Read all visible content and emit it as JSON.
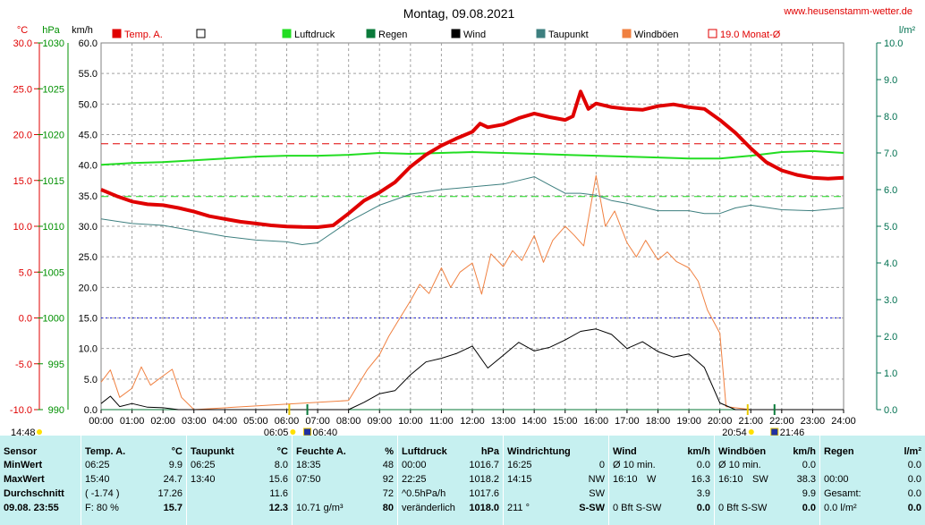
{
  "chart_data": {
    "type": "line",
    "title": "Montag, 09.08.2021",
    "watermark": "www.heusenstamm-wetter.de",
    "axes": {
      "temperature": {
        "unit": "°C",
        "range": [
          -10,
          30
        ],
        "ticks": [
          "30.0",
          "25.0",
          "20.0",
          "15.0",
          "10.0",
          "5.0",
          "0.0",
          "-5.0",
          "-10.0"
        ],
        "color": "#e00000"
      },
      "pressure": {
        "unit": "hPa",
        "range": [
          990,
          1030
        ],
        "ticks": [
          "1030",
          "1025",
          "1020",
          "1015",
          "1010",
          "1005",
          "1000",
          "995",
          "990"
        ],
        "color": "#009000"
      },
      "wind": {
        "unit": "km/h",
        "range": [
          0,
          60
        ],
        "ticks": [
          "60.0",
          "55.0",
          "50.0",
          "45.0",
          "40.0",
          "35.0",
          "30.0",
          "25.0",
          "20.0",
          "15.0",
          "10.0",
          "5.0",
          "0.0"
        ],
        "color": "#000000"
      },
      "rain": {
        "unit": "l/m²",
        "range": [
          0,
          10
        ],
        "ticks": [
          "10.0",
          "9.0",
          "8.0",
          "7.0",
          "6.0",
          "5.0",
          "4.0",
          "3.0",
          "2.0",
          "1.0",
          "0.0"
        ],
        "color": "#007050"
      }
    },
    "x_ticks": [
      "00:00",
      "01:00",
      "02:00",
      "03:00",
      "04:00",
      "05:00",
      "06:00",
      "07:00",
      "08:00",
      "09:00",
      "10:00",
      "11:00",
      "12:00",
      "13:00",
      "14:00",
      "15:00",
      "16:00",
      "17:00",
      "18:00",
      "19:00",
      "20:00",
      "21:00",
      "22:00",
      "23:00",
      "24:00"
    ],
    "x_range_hours": [
      0,
      24
    ],
    "grid": true,
    "legend_position": "top",
    "legend": [
      {
        "label": "Temp. A.",
        "color": "#e00000",
        "style": "filled"
      },
      {
        "label": "",
        "color": "#ffffff",
        "style": "hollow"
      },
      {
        "label": "Luftdruck",
        "color": "#22dd22",
        "style": "filled"
      },
      {
        "label": "Regen",
        "color": "#0a7a3a",
        "style": "filled"
      },
      {
        "label": "Wind",
        "color": "#000000",
        "style": "filled"
      },
      {
        "label": "Taupunkt",
        "color": "#3d7f7f",
        "style": "filled"
      },
      {
        "label": "Windböen",
        "color": "#f08040",
        "style": "filled"
      },
      {
        "label": "19.0 Monat-Ø",
        "color": "#e00000",
        "style": "hollow"
      }
    ],
    "reference_lines": [
      {
        "axis": "temperature",
        "value": 19.0,
        "color": "#e00000",
        "style": "dashed"
      },
      {
        "axis": "pressure",
        "value": 1013.25,
        "color": "#22dd22",
        "style": "dashed"
      },
      {
        "axis": "temperature",
        "value": 0,
        "color": "#2020d0",
        "style": "dotted"
      }
    ],
    "markers": {
      "sunrise": "06:05",
      "sunset": "20:54",
      "moonrise": "06:40",
      "moonset": "21:46",
      "daylength": "14:48"
    },
    "series": [
      {
        "name": "Temp. A.",
        "axis": "temperature",
        "color": "#e00000",
        "x": [
          0,
          0.5,
          1,
          1.5,
          2,
          2.5,
          3,
          3.5,
          4,
          4.5,
          5,
          5.5,
          6,
          6.5,
          7,
          7.5,
          8,
          8.5,
          9,
          9.5,
          10,
          10.5,
          11,
          11.5,
          12,
          12.25,
          12.5,
          13,
          13.5,
          14,
          14.5,
          15,
          15.25,
          15.5,
          15.75,
          16,
          16.5,
          17,
          17.5,
          18,
          18.5,
          19,
          19.5,
          20,
          20.5,
          21,
          21.5,
          22,
          22.5,
          23,
          23.5,
          24
        ],
        "y": [
          14.0,
          13.3,
          12.7,
          12.4,
          12.3,
          12.0,
          11.6,
          11.1,
          10.8,
          10.5,
          10.3,
          10.1,
          9.98,
          9.92,
          9.9,
          10.1,
          11.4,
          12.8,
          13.7,
          14.8,
          16.5,
          17.8,
          18.8,
          19.6,
          20.3,
          21.2,
          20.8,
          21.1,
          21.8,
          22.3,
          21.9,
          21.6,
          22.0,
          24.7,
          22.8,
          23.4,
          23.0,
          22.8,
          22.7,
          23.1,
          23.3,
          23.0,
          22.8,
          21.6,
          20.2,
          18.5,
          17.0,
          16.1,
          15.6,
          15.3,
          15.2,
          15.3
        ]
      },
      {
        "name": "Luftdruck",
        "axis": "pressure",
        "color": "#22dd22",
        "x": [
          0,
          1,
          2,
          3,
          4,
          5,
          6,
          7,
          8,
          9,
          10,
          11,
          12,
          13,
          14,
          15,
          16,
          17,
          18,
          19,
          20,
          21,
          22,
          23,
          24
        ],
        "y": [
          1016.7,
          1016.9,
          1017.0,
          1017.2,
          1017.4,
          1017.6,
          1017.7,
          1017.7,
          1017.8,
          1018.0,
          1017.9,
          1018.0,
          1018.1,
          1018.0,
          1017.9,
          1017.8,
          1017.7,
          1017.6,
          1017.5,
          1017.4,
          1017.4,
          1017.7,
          1018.1,
          1018.2,
          1018.0
        ]
      },
      {
        "name": "Taupunkt",
        "axis": "temperature",
        "color": "#3d7f7f",
        "x": [
          0,
          1,
          2,
          3,
          4,
          5,
          6,
          6.5,
          7,
          8,
          9,
          10,
          11,
          12,
          13,
          13.5,
          14,
          14.5,
          15,
          15.5,
          16,
          16.5,
          17,
          18,
          19,
          19.5,
          20,
          20.5,
          21,
          22,
          23,
          24
        ],
        "y": [
          10.8,
          10.3,
          10.1,
          9.5,
          8.9,
          8.5,
          8.3,
          8.0,
          8.2,
          10.5,
          12.3,
          13.5,
          14.0,
          14.3,
          14.6,
          15.0,
          15.4,
          14.5,
          13.6,
          13.6,
          13.4,
          12.8,
          12.5,
          11.7,
          11.7,
          11.4,
          11.4,
          12.0,
          12.3,
          11.8,
          11.7,
          12.0
        ]
      },
      {
        "name": "Wind",
        "axis": "wind",
        "color": "#000000",
        "x": [
          0,
          0.3,
          0.6,
          1,
          1.5,
          2,
          2.5,
          3,
          8,
          8.5,
          9,
          9.5,
          10,
          10.5,
          11,
          11.5,
          12,
          12.5,
          13,
          13.5,
          14,
          14.5,
          15,
          15.5,
          16,
          16.5,
          17,
          17.5,
          18,
          18.5,
          19,
          19.5,
          20,
          20.5,
          21,
          24
        ],
        "y": [
          1.0,
          2.2,
          0.5,
          1.0,
          0.4,
          0.3,
          0.0,
          0.0,
          0.0,
          1.2,
          2.6,
          3.1,
          5.7,
          7.8,
          8.4,
          9.2,
          10.4,
          6.8,
          8.9,
          11.0,
          9.6,
          10.2,
          11.4,
          12.8,
          13.2,
          12.3,
          10.0,
          11.1,
          9.5,
          8.6,
          9.1,
          6.9,
          1.1,
          0.0,
          0.0,
          0.0
        ]
      },
      {
        "name": "Windböen",
        "axis": "wind",
        "color": "#f08040",
        "x": [
          0,
          0.3,
          0.6,
          1,
          1.3,
          1.6,
          2,
          2.3,
          2.6,
          3,
          8,
          8.3,
          8.6,
          9,
          9.3,
          9.6,
          10,
          10.3,
          10.6,
          11,
          11.3,
          11.6,
          12,
          12.3,
          12.6,
          13,
          13.3,
          13.6,
          14,
          14.3,
          14.6,
          15,
          15.3,
          15.6,
          16,
          16.3,
          16.6,
          17,
          17.3,
          17.6,
          18,
          18.3,
          18.6,
          19,
          19.3,
          19.6,
          20,
          20.2,
          21,
          24
        ],
        "y": [
          4.5,
          6.5,
          2.0,
          3.5,
          7.0,
          4.0,
          5.5,
          6.6,
          2.0,
          0.0,
          1.5,
          4.0,
          6.5,
          9.0,
          12.0,
          14.5,
          17.8,
          20.5,
          19.0,
          23.2,
          20.0,
          22.5,
          24.0,
          18.9,
          25.5,
          23.4,
          26.0,
          24.4,
          28.5,
          24.1,
          27.7,
          30.0,
          28.5,
          26.8,
          38.3,
          30.0,
          32.5,
          27.3,
          25.0,
          27.7,
          24.5,
          25.8,
          24.2,
          23.2,
          21.0,
          16.3,
          12.5,
          0.5,
          0.0,
          0.0
        ]
      },
      {
        "name": "Regen",
        "axis": "rain",
        "color": "#0a7a3a",
        "x": [
          0,
          24
        ],
        "y": [
          0.0,
          0.0
        ]
      }
    ]
  },
  "stats": {
    "sensor": {
      "header": "Sensor",
      "rows": [
        "MinWert",
        "MaxWert",
        "Durchschnitt",
        "09.08. 23:55"
      ]
    },
    "temp": {
      "header": "Temp. A.",
      "unit": "°C",
      "rows": [
        {
          "l": "06:25",
          "r": "9.9"
        },
        {
          "l": "15:40",
          "r": "24.7"
        },
        {
          "l": "( -1.74 )",
          "r": "17.26"
        },
        {
          "l": "F: 80 %",
          "r": "15.7"
        }
      ]
    },
    "taupunkt": {
      "header": "Taupunkt",
      "unit": "°C",
      "rows": [
        {
          "l": "06:25",
          "r": "8.0"
        },
        {
          "l": "13:40",
          "r": "15.6"
        },
        {
          "l": "",
          "r": "11.6"
        },
        {
          "l": "",
          "r": "12.3"
        }
      ]
    },
    "feuchte": {
      "header": "Feuchte A.",
      "unit": "%",
      "rows": [
        {
          "l": "18:35",
          "r": "48"
        },
        {
          "l": "07:50",
          "r": "92"
        },
        {
          "l": "",
          "r": "72"
        },
        {
          "l": "10.71 g/m³",
          "r": "80"
        }
      ]
    },
    "luftdruck": {
      "header": "Luftdruck",
      "unit": "hPa",
      "rows": [
        {
          "l": "00:00",
          "r": "1016.7"
        },
        {
          "l": "22:25",
          "r": "1018.2"
        },
        {
          "l": "^0.5hPa/h",
          "r": "1017.6"
        },
        {
          "l": "veränderlich",
          "r": "1018.0"
        }
      ]
    },
    "windrichtung": {
      "header": "Windrichtung",
      "unit": "",
      "rows": [
        {
          "l": "16:25",
          "r": "0"
        },
        {
          "l": "14:15",
          "r": "NW"
        },
        {
          "l": "",
          "r": "SW"
        },
        {
          "l": "211 °",
          "r": "S-SW"
        }
      ]
    },
    "wind": {
      "header": "Wind",
      "unit": "km/h",
      "rows": [
        {
          "l": "Ø 10 min.",
          "r": "0.0"
        },
        {
          "l": "16:10",
          "m": "W",
          "r": "16.3"
        },
        {
          "l": "",
          "r": "3.9"
        },
        {
          "l": "0 Bft S-SW",
          "r": "0.0"
        }
      ]
    },
    "windboeen": {
      "header": "Windböen",
      "unit": "km/h",
      "rows": [
        {
          "l": "Ø 10 min.",
          "r": "0.0"
        },
        {
          "l": "16:10",
          "m": "SW",
          "r": "38.3"
        },
        {
          "l": "",
          "r": "9.9"
        },
        {
          "l": "0 Bft S-SW",
          "r": "0.0"
        }
      ]
    },
    "regen": {
      "header": "Regen",
      "unit": "l/m²",
      "rows": [
        {
          "l": "",
          "r": "0.0"
        },
        {
          "l": "00:00",
          "r": "0.0"
        },
        {
          "l": "Gesamt:",
          "r": "0.0"
        },
        {
          "l": "0.0 l/m²",
          "r": "0.0"
        }
      ]
    }
  }
}
